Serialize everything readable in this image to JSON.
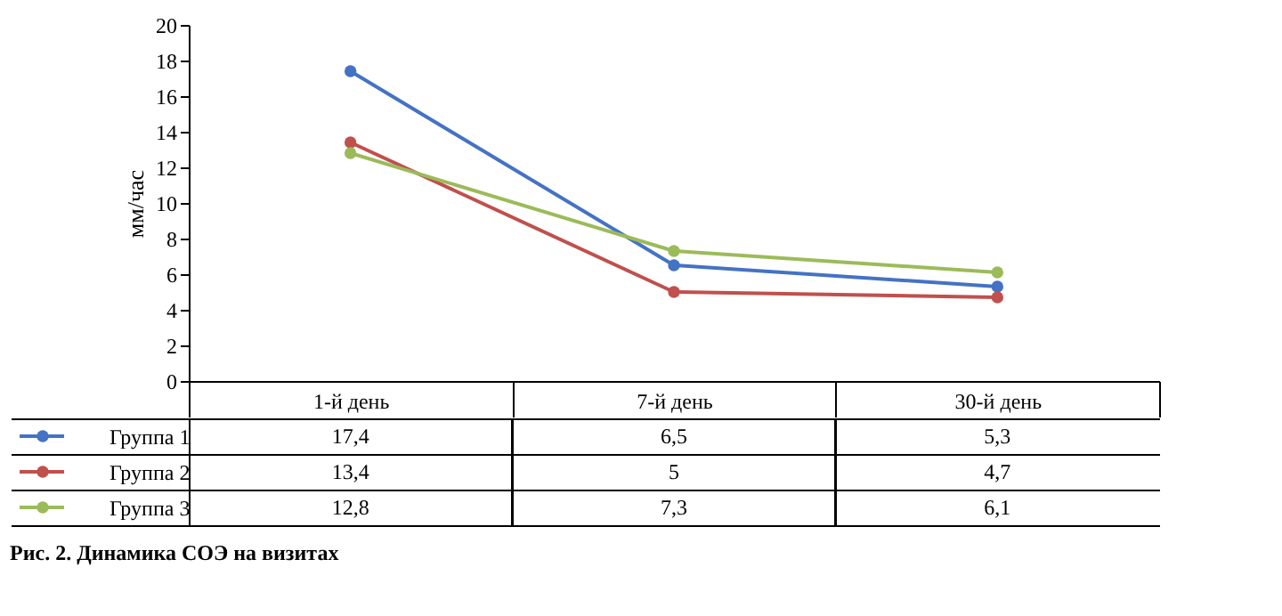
{
  "chart_data": {
    "type": "line",
    "title": "Рис. 2. Динамика СОЭ на визитах",
    "ylabel": "мм/час",
    "categories": [
      "1-й день",
      "7-й день",
      "30-й день"
    ],
    "ylim": [
      0,
      20
    ],
    "yticks": [
      0,
      2,
      4,
      6,
      8,
      10,
      12,
      14,
      16,
      18,
      20
    ],
    "marker": "circle",
    "line_style": "solid",
    "legend": "bottom",
    "grid": false,
    "series": [
      {
        "name": "Группа 1",
        "color": "#4472c4",
        "values": [
          17.4,
          6.5,
          5.3
        ],
        "value_labels": [
          "17,4",
          "6,5",
          "5,3"
        ]
      },
      {
        "name": "Группа 2",
        "color": "#c0504d",
        "values": [
          13.4,
          5,
          4.7
        ],
        "value_labels": [
          "13,4",
          "5",
          "4,7"
        ]
      },
      {
        "name": "Группа 3",
        "color": "#9bbb59",
        "values": [
          12.8,
          7.3,
          6.1
        ],
        "value_labels": [
          "12,8",
          "7,3",
          "6,1"
        ]
      }
    ]
  }
}
